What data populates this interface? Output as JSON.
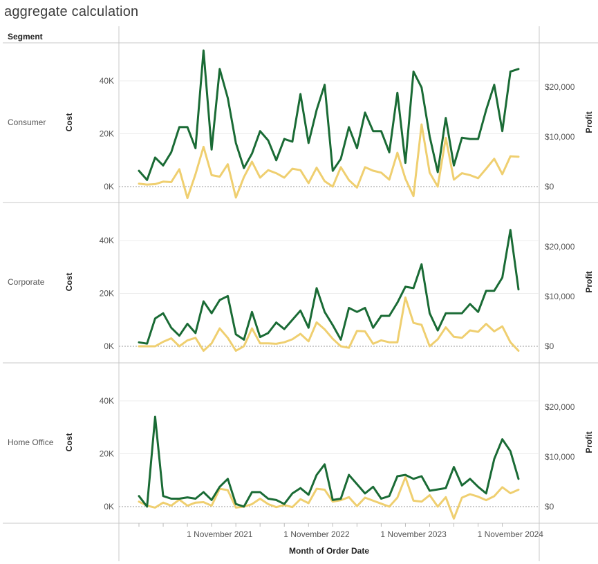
{
  "page_title": "aggregate calculation",
  "chart_data": {
    "type": "line",
    "title": "aggregate calculation",
    "row_header": "Segment",
    "xlabel": "Month of Order Date",
    "y_left_label": "Cost",
    "y_right_label": "Profit",
    "x_ticks": [
      "1 November 2021",
      "1 November 2022",
      "1 November 2023",
      "1 November 2024"
    ],
    "y_left_ticks": [
      "0K",
      "20K",
      "40K"
    ],
    "y_right_ticks": [
      "$0",
      "$10,000",
      "$20,000"
    ],
    "y_left_range": [
      -4000,
      54000
    ],
    "y_right_range": [
      -4000,
      28000
    ],
    "colors": {
      "cost": "#1a6b35",
      "profit": "#efcf70",
      "zero_line": "#9a9a9a",
      "grid": "#ececec",
      "divider": "#c8c8c8"
    },
    "months": [
      "Jan 2021",
      "Feb 2021",
      "Mar 2021",
      "Apr 2021",
      "May 2021",
      "Jun 2021",
      "Jul 2021",
      "Aug 2021",
      "Sep 2021",
      "Oct 2021",
      "Nov 2021",
      "Dec 2021",
      "Jan 2022",
      "Feb 2022",
      "Mar 2022",
      "Apr 2022",
      "May 2022",
      "Jun 2022",
      "Jul 2022",
      "Aug 2022",
      "Sep 2022",
      "Oct 2022",
      "Nov 2022",
      "Dec 2022",
      "Jan 2023",
      "Feb 2023",
      "Mar 2023",
      "Apr 2023",
      "May 2023",
      "Jun 2023",
      "Jul 2023",
      "Aug 2023",
      "Sep 2023",
      "Oct 2023",
      "Nov 2023",
      "Dec 2023",
      "Jan 2024",
      "Feb 2024",
      "Mar 2024",
      "Apr 2024",
      "May 2024",
      "Jun 2024",
      "Jul 2024",
      "Aug 2024",
      "Sep 2024",
      "Oct 2024",
      "Nov 2024",
      "Dec 2024"
    ],
    "panels": [
      {
        "segment": "Consumer",
        "series": [
          {
            "name": "Cost",
            "axis": "left",
            "values": [
              6000,
              2500,
              11000,
              8000,
              13000,
              22500,
              22500,
              14500,
              51500,
              14000,
              44500,
              33500,
              16500,
              7000,
              12500,
              21000,
              17500,
              10000,
              18000,
              17000,
              35000,
              16500,
              29000,
              38500,
              6000,
              10500,
              22500,
              14500,
              28000,
              21000,
              21000,
              13000,
              35500,
              9000,
              43500,
              37500,
              19000,
              5500,
              26000,
              8000,
              18500,
              18000,
              18000,
              29000,
              38500,
              21000,
              43500,
              44500
            ]
          },
          {
            "name": "Profit",
            "axis": "right",
            "values": [
              600,
              400,
              500,
              1000,
              900,
              3500,
              -2300,
              2500,
              8000,
              2300,
              2000,
              4500,
              -2200,
              1900,
              5000,
              1800,
              3300,
              2700,
              1800,
              3600,
              3300,
              700,
              3800,
              1100,
              0,
              3900,
              1300,
              -200,
              3900,
              3200,
              2800,
              1400,
              6800,
              1600,
              -1900,
              12500,
              2800,
              0,
              9800,
              1400,
              2700,
              2300,
              1700,
              3600,
              5600,
              2500,
              6100,
              6000
            ]
          }
        ]
      },
      {
        "segment": "Corporate",
        "series": [
          {
            "name": "Cost",
            "axis": "left",
            "values": [
              1500,
              1000,
              10500,
              12500,
              7000,
              4000,
              8500,
              5000,
              17000,
              12500,
              17500,
              19000,
              4500,
              2500,
              13000,
              3500,
              5000,
              9000,
              6500,
              10000,
              13500,
              7000,
              22000,
              13000,
              8000,
              2500,
              14500,
              13000,
              14500,
              7000,
              11500,
              11500,
              16500,
              22500,
              22000,
              31000,
              12500,
              6000,
              12500,
              12500,
              12500,
              16000,
              13000,
              21000,
              21000,
              26000,
              44000,
              21500
            ]
          },
          {
            "name": "Profit",
            "axis": "right",
            "values": [
              0,
              0,
              0,
              900,
              1600,
              0,
              1200,
              1700,
              -900,
              600,
              3600,
              1700,
              -900,
              0,
              3600,
              600,
              600,
              500,
              800,
              1400,
              2500,
              1000,
              4800,
              3400,
              1500,
              0,
              -300,
              3100,
              3000,
              500,
              1200,
              800,
              800,
              9800,
              4700,
              4300,
              0,
              1400,
              3800,
              1900,
              1700,
              3200,
              2900,
              4500,
              3000,
              4000,
              800,
              -900
            ]
          }
        ]
      },
      {
        "segment": "Home Office",
        "series": [
          {
            "name": "Cost",
            "axis": "left",
            "values": [
              4000,
              0,
              34000,
              4000,
              3000,
              3000,
              3500,
              3000,
              5500,
              2500,
              7500,
              10500,
              1000,
              0,
              5500,
              5500,
              3000,
              2500,
              1000,
              5000,
              7000,
              4500,
              12000,
              16000,
              2500,
              3000,
              12000,
              8500,
              5000,
              7500,
              3000,
              4000,
              11500,
              12000,
              10500,
              11500,
              6000,
              6500,
              7000,
              15000,
              8000,
              10500,
              7500,
              5000,
              18000,
              25500,
              21000,
              10500
            ]
          },
          {
            "name": "Profit",
            "axis": "right",
            "values": [
              1000,
              200,
              -200,
              800,
              200,
              1400,
              200,
              800,
              900,
              200,
              3600,
              3300,
              -200,
              0,
              500,
              1600,
              500,
              -100,
              300,
              -100,
              1500,
              700,
              3600,
              3400,
              1000,
              1300,
              1900,
              100,
              1800,
              1200,
              600,
              0,
              1800,
              5900,
              1200,
              1000,
              2300,
              0,
              1900,
              -2400,
              1800,
              2500,
              2000,
              1300,
              2100,
              3900,
              2700,
              3400
            ]
          }
        ]
      }
    ]
  }
}
